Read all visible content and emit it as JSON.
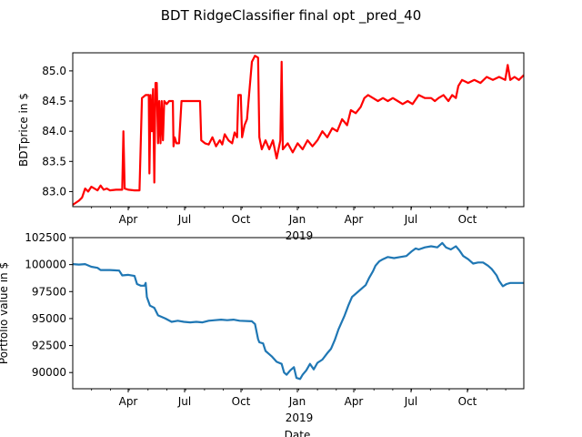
{
  "title": "BDT RidgeClassifier final opt _pred_40",
  "colors": {
    "price_line": "#ff0000",
    "portfolio_line": "#1f77b4",
    "axes": "#000000"
  },
  "chart_data": [
    {
      "type": "line",
      "ylabel": "BDTprice in $",
      "xlabel": "",
      "x_ticks": [
        "Apr",
        "Jul",
        "Oct",
        "Jan",
        "Apr",
        "Jul",
        "Oct"
      ],
      "x_year_label": "2019",
      "yticks": [
        "83.0",
        "83.5",
        "84.0",
        "84.5",
        "85.0"
      ],
      "ylim": [
        82.75,
        85.3
      ],
      "xlim": [
        0,
        730
      ],
      "grid": false,
      "series": [
        {
          "color": "#ff0000",
          "points": [
            [
              0,
              82.78
            ],
            [
              10,
              82.85
            ],
            [
              15,
              82.9
            ],
            [
              20,
              83.05
            ],
            [
              25,
              83.0
            ],
            [
              30,
              83.08
            ],
            [
              35,
              83.05
            ],
            [
              40,
              83.02
            ],
            [
              45,
              83.1
            ],
            [
              50,
              83.03
            ],
            [
              55,
              83.05
            ],
            [
              60,
              83.02
            ],
            [
              70,
              83.03
            ],
            [
              80,
              83.03
            ],
            [
              82,
              84.0
            ],
            [
              84,
              83.05
            ],
            [
              90,
              83.03
            ],
            [
              100,
              83.02
            ],
            [
              108,
              83.02
            ],
            [
              112,
              84.55
            ],
            [
              118,
              84.6
            ],
            [
              123,
              84.6
            ],
            [
              124,
              83.3
            ],
            [
              126,
              84.6
            ],
            [
              128,
              84.0
            ],
            [
              130,
              84.7
            ],
            [
              132,
              83.15
            ],
            [
              134,
              84.8
            ],
            [
              136,
              84.8
            ],
            [
              138,
              83.8
            ],
            [
              140,
              84.5
            ],
            [
              142,
              83.8
            ],
            [
              144,
              84.5
            ],
            [
              146,
              83.85
            ],
            [
              148,
              84.5
            ],
            [
              152,
              84.45
            ],
            [
              156,
              84.5
            ],
            [
              162,
              84.5
            ],
            [
              163,
              83.75
            ],
            [
              165,
              83.9
            ],
            [
              168,
              83.8
            ],
            [
              172,
              83.8
            ],
            [
              176,
              84.5
            ],
            [
              185,
              84.5
            ],
            [
              200,
              84.5
            ],
            [
              206,
              84.5
            ],
            [
              208,
              83.85
            ],
            [
              214,
              83.8
            ],
            [
              220,
              83.78
            ],
            [
              226,
              83.9
            ],
            [
              232,
              83.75
            ],
            [
              238,
              83.85
            ],
            [
              242,
              83.78
            ],
            [
              246,
              83.95
            ],
            [
              252,
              83.85
            ],
            [
              258,
              83.8
            ],
            [
              262,
              83.98
            ],
            [
              266,
              83.9
            ],
            [
              268,
              84.6
            ],
            [
              272,
              84.6
            ],
            [
              274,
              83.9
            ],
            [
              278,
              84.1
            ],
            [
              282,
              84.2
            ],
            [
              290,
              85.15
            ],
            [
              295,
              85.25
            ],
            [
              300,
              85.22
            ],
            [
              302,
              83.9
            ],
            [
              306,
              83.7
            ],
            [
              312,
              83.85
            ],
            [
              318,
              83.7
            ],
            [
              324,
              83.85
            ],
            [
              330,
              83.55
            ],
            [
              336,
              83.85
            ],
            [
              338,
              85.15
            ],
            [
              340,
              83.7
            ],
            [
              348,
              83.8
            ],
            [
              356,
              83.65
            ],
            [
              364,
              83.8
            ],
            [
              372,
              83.7
            ],
            [
              380,
              83.85
            ],
            [
              388,
              83.75
            ],
            [
              396,
              83.85
            ],
            [
              404,
              84.0
            ],
            [
              412,
              83.9
            ],
            [
              420,
              84.05
            ],
            [
              428,
              84.0
            ],
            [
              436,
              84.2
            ],
            [
              444,
              84.1
            ],
            [
              450,
              84.35
            ],
            [
              458,
              84.3
            ],
            [
              466,
              84.4
            ],
            [
              472,
              84.55
            ],
            [
              478,
              84.6
            ],
            [
              486,
              84.55
            ],
            [
              494,
              84.5
            ],
            [
              502,
              84.55
            ],
            [
              510,
              84.5
            ],
            [
              518,
              84.55
            ],
            [
              526,
              84.5
            ],
            [
              534,
              84.45
            ],
            [
              542,
              84.5
            ],
            [
              550,
              84.45
            ],
            [
              560,
              84.6
            ],
            [
              570,
              84.55
            ],
            [
              580,
              84.55
            ],
            [
              586,
              84.5
            ],
            [
              592,
              84.55
            ],
            [
              600,
              84.6
            ],
            [
              608,
              84.5
            ],
            [
              614,
              84.6
            ],
            [
              620,
              84.55
            ],
            [
              624,
              84.75
            ],
            [
              630,
              84.85
            ],
            [
              640,
              84.8
            ],
            [
              650,
              84.85
            ],
            [
              660,
              84.8
            ],
            [
              670,
              84.9
            ],
            [
              680,
              84.85
            ],
            [
              690,
              84.9
            ],
            [
              700,
              84.85
            ],
            [
              704,
              85.1
            ],
            [
              708,
              84.85
            ],
            [
              715,
              84.9
            ],
            [
              722,
              84.85
            ],
            [
              730,
              84.93
            ]
          ]
        }
      ]
    },
    {
      "type": "line",
      "ylabel": "Portfolio value in $",
      "xlabel": "Date",
      "x_ticks": [
        "Apr",
        "Jul",
        "Oct",
        "Jan",
        "Apr",
        "Jul",
        "Oct"
      ],
      "x_year_label": "2019",
      "yticks": [
        "90000",
        "92500",
        "95000",
        "97500",
        "100000",
        "102500"
      ],
      "ylim": [
        88500,
        102500
      ],
      "xlim": [
        0,
        730
      ],
      "grid": false,
      "series": [
        {
          "color": "#1f77b4",
          "points": [
            [
              0,
              100050
            ],
            [
              10,
              100000
            ],
            [
              20,
              100050
            ],
            [
              30,
              99800
            ],
            [
              40,
              99700
            ],
            [
              45,
              99500
            ],
            [
              60,
              99500
            ],
            [
              75,
              99450
            ],
            [
              80,
              99000
            ],
            [
              90,
              99050
            ],
            [
              100,
              98950
            ],
            [
              104,
              98200
            ],
            [
              110,
              98050
            ],
            [
              116,
              98050
            ],
            [
              118,
              98300
            ],
            [
              120,
              97000
            ],
            [
              125,
              96200
            ],
            [
              132,
              96000
            ],
            [
              138,
              95300
            ],
            [
              150,
              95000
            ],
            [
              160,
              94700
            ],
            [
              170,
              94800
            ],
            [
              180,
              94700
            ],
            [
              190,
              94650
            ],
            [
              200,
              94700
            ],
            [
              210,
              94650
            ],
            [
              220,
              94800
            ],
            [
              230,
              94850
            ],
            [
              240,
              94900
            ],
            [
              250,
              94850
            ],
            [
              260,
              94900
            ],
            [
              270,
              94800
            ],
            [
              290,
              94750
            ],
            [
              295,
              94500
            ],
            [
              300,
              93100
            ],
            [
              302,
              92800
            ],
            [
              308,
              92700
            ],
            [
              312,
              92000
            ],
            [
              318,
              91700
            ],
            [
              322,
              91500
            ],
            [
              330,
              91000
            ],
            [
              338,
              90800
            ],
            [
              342,
              90000
            ],
            [
              346,
              89800
            ],
            [
              352,
              90200
            ],
            [
              358,
              90500
            ],
            [
              362,
              89500
            ],
            [
              368,
              89400
            ],
            [
              372,
              89800
            ],
            [
              378,
              90200
            ],
            [
              384,
              90800
            ],
            [
              390,
              90300
            ],
            [
              396,
              90900
            ],
            [
              404,
              91200
            ],
            [
              412,
              91800
            ],
            [
              418,
              92200
            ],
            [
              424,
              93000
            ],
            [
              430,
              94000
            ],
            [
              440,
              95300
            ],
            [
              446,
              96200
            ],
            [
              452,
              97000
            ],
            [
              460,
              97400
            ],
            [
              468,
              97800
            ],
            [
              474,
              98100
            ],
            [
              480,
              98800
            ],
            [
              486,
              99400
            ],
            [
              490,
              99900
            ],
            [
              496,
              100300
            ],
            [
              502,
              100500
            ],
            [
              510,
              100700
            ],
            [
              520,
              100600
            ],
            [
              530,
              100700
            ],
            [
              540,
              100800
            ],
            [
              548,
              101200
            ],
            [
              555,
              101500
            ],
            [
              560,
              101400
            ],
            [
              570,
              101600
            ],
            [
              580,
              101700
            ],
            [
              590,
              101600
            ],
            [
              598,
              102000
            ],
            [
              604,
              101600
            ],
            [
              612,
              101400
            ],
            [
              620,
              101700
            ],
            [
              626,
              101300
            ],
            [
              632,
              100800
            ],
            [
              640,
              100500
            ],
            [
              648,
              100100
            ],
            [
              656,
              100200
            ],
            [
              664,
              100200
            ],
            [
              672,
              99900
            ],
            [
              678,
              99600
            ],
            [
              686,
              99000
            ],
            [
              690,
              98500
            ],
            [
              696,
              98000
            ],
            [
              702,
              98200
            ],
            [
              708,
              98300
            ],
            [
              730,
              98300
            ]
          ]
        }
      ]
    }
  ]
}
